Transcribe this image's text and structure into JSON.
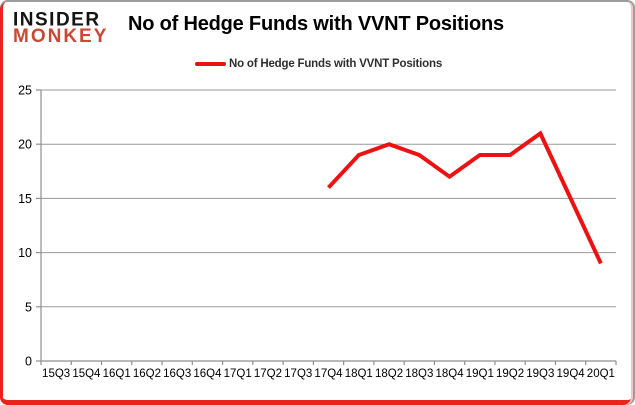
{
  "logo": {
    "line1": "INSIDER",
    "line2": "MONKEY"
  },
  "header": {
    "title": "No of Hedge Funds with VVNT Positions"
  },
  "legend": {
    "label": "No of Hedge Funds with VVNT Positions",
    "line_color": "#ee1111"
  },
  "chart_data": {
    "type": "line",
    "title": "No of Hedge Funds with VVNT Positions",
    "categories": [
      "15Q3",
      "15Q4",
      "16Q1",
      "16Q2",
      "16Q3",
      "16Q4",
      "17Q1",
      "17Q2",
      "17Q3",
      "17Q4",
      "18Q1",
      "18Q2",
      "18Q3",
      "18Q4",
      "19Q1",
      "19Q2",
      "19Q3",
      "19Q4",
      "20Q1"
    ],
    "series": [
      {
        "name": "No of Hedge Funds with VVNT Positions",
        "color": "#ee1111",
        "values": [
          null,
          null,
          null,
          null,
          null,
          null,
          null,
          null,
          null,
          16,
          19,
          20,
          19,
          17,
          19,
          19,
          21,
          15,
          9
        ]
      }
    ],
    "ylim": [
      0,
      25
    ],
    "yticks": [
      0,
      5,
      10,
      15,
      20,
      25
    ],
    "xlabel": "",
    "ylabel": "",
    "grid": true,
    "legend_position": "top",
    "axis_color": "#8f8f8f",
    "grid_color": "#9a9a9a",
    "label_color": "#000000"
  }
}
